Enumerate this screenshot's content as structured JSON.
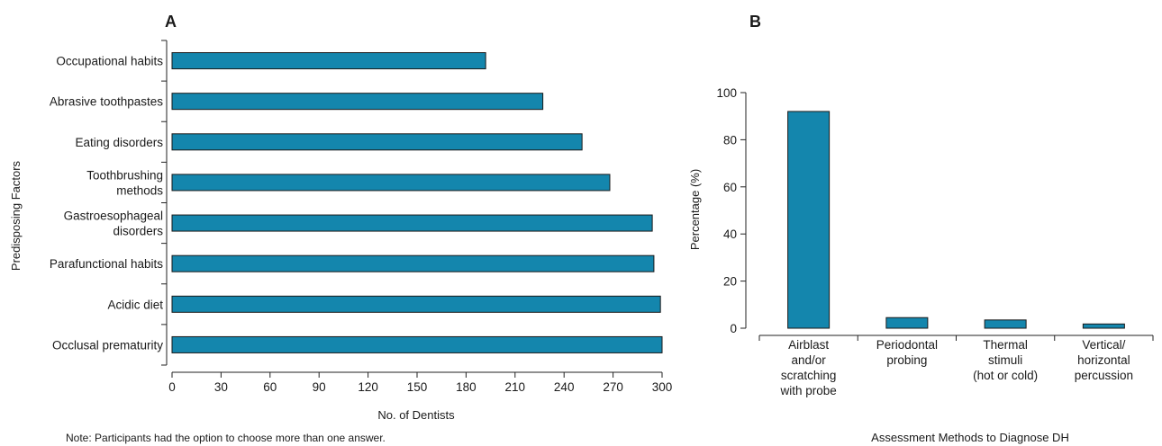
{
  "colors": {
    "bar": "#1486ad",
    "axis": "#222222"
  },
  "chart_data": [
    {
      "panel": "A",
      "type": "bar",
      "orientation": "horizontal",
      "categories": [
        "Occupational habits",
        "Abrasive toothpastes",
        "Eating disorders",
        "Toothbrushing methods",
        "Gastroesophageal disorders",
        "Parafunctional habits",
        "Acidic diet",
        "Occlusal prematurity"
      ],
      "category_lines": [
        [
          "Occupational habits"
        ],
        [
          "Abrasive toothpastes"
        ],
        [
          "Eating disorders"
        ],
        [
          "Toothbrushing",
          "methods"
        ],
        [
          "Gastroesophageal",
          "disorders"
        ],
        [
          "Parafunctional habits"
        ],
        [
          "Acidic diet"
        ],
        [
          "Occlusal prematurity"
        ]
      ],
      "values": [
        192,
        227,
        251,
        268,
        294,
        295,
        299,
        300
      ],
      "xlabel": "No. of Dentists",
      "ylabel": "Predisposing Factors",
      "xlim": [
        0,
        300
      ],
      "xticks": [
        0,
        30,
        60,
        90,
        120,
        150,
        180,
        210,
        240,
        270,
        300
      ],
      "grid": false,
      "note": "Note: Participants had the option to choose more than one answer."
    },
    {
      "panel": "B",
      "type": "bar",
      "orientation": "vertical",
      "categories": [
        "Airblast and/or scratching with probe",
        "Periodontal probing",
        "Thermal stimuli (hot or cold)",
        "Vertical/ horizontal percussion"
      ],
      "category_lines": [
        [
          "Airblast",
          "and/or",
          "scratching",
          "with probe"
        ],
        [
          "Periodontal",
          "probing"
        ],
        [
          "Thermal",
          "stimuli",
          "(hot or cold)"
        ],
        [
          "Vertical/",
          "horizontal",
          "percussion"
        ]
      ],
      "values": [
        92,
        4.5,
        3.5,
        1.8
      ],
      "xlabel": "Assessment Methods to Diagnose DH",
      "ylabel": "Percentage (%)",
      "ylim": [
        0,
        100
      ],
      "yticks": [
        0,
        20,
        40,
        60,
        80,
        100
      ],
      "grid": false
    }
  ]
}
